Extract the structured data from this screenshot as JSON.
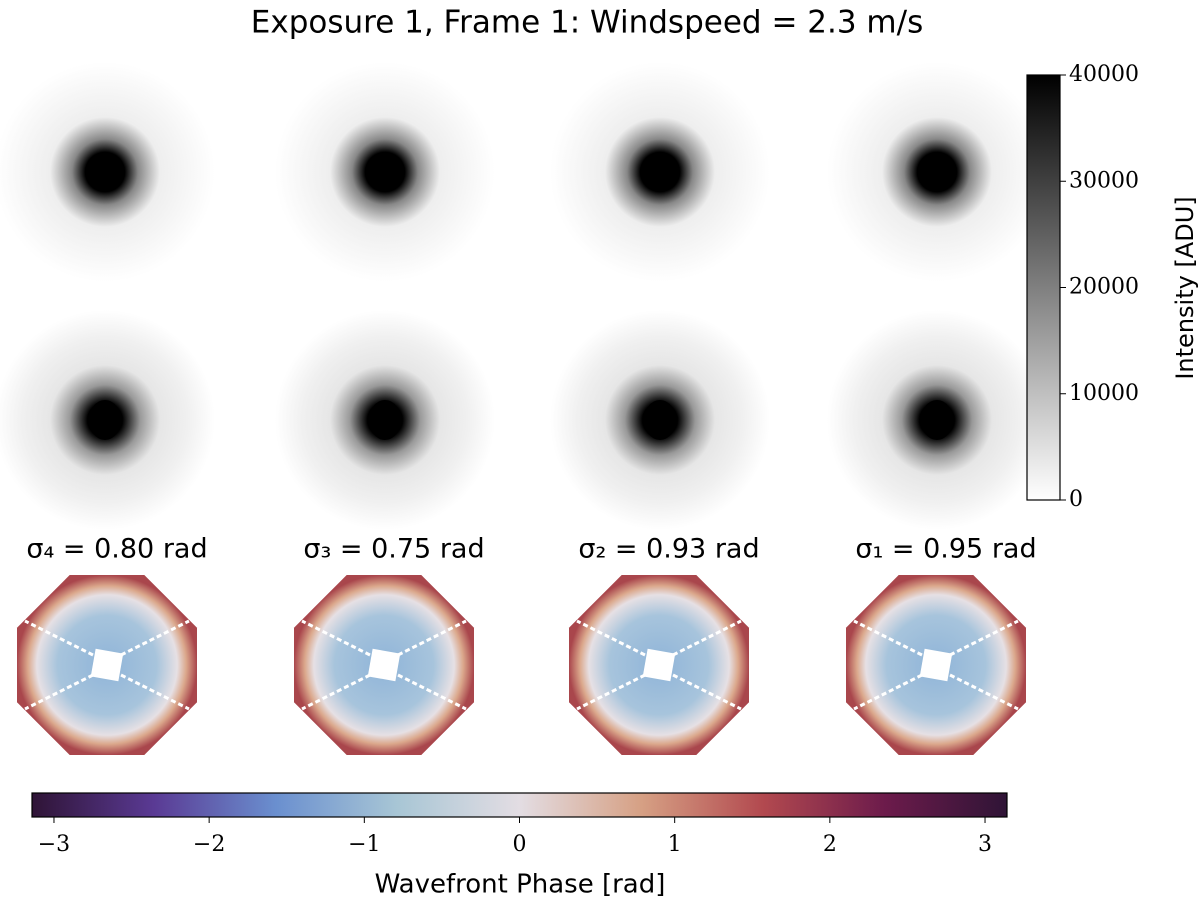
{
  "title": "Exposure 1, Frame 1: Windspeed = 2.3 m/s",
  "intensity_colorbar": {
    "label": "Intensity [ADU]",
    "lim": [
      0,
      40000
    ],
    "ticks": [
      0,
      10000,
      20000,
      30000,
      40000
    ],
    "colors": [
      "#ffffff",
      "#000000"
    ]
  },
  "wavefront_labels": [
    "σ₄ = 0.80 rad",
    "σ₃ = 0.75 rad",
    "σ₂ = 0.93 rad",
    "σ₁ = 0.95 rad"
  ],
  "phase_colorbar": {
    "label": "Wavefront Phase [rad]",
    "lim": [
      -3.1416,
      3.1416
    ],
    "ticks": [
      {
        "value": -3,
        "label": "−3"
      },
      {
        "value": -2,
        "label": "−2"
      },
      {
        "value": -1,
        "label": "−1"
      },
      0,
      1,
      2,
      3
    ],
    "colors": [
      "#2f1436",
      "#5a3a94",
      "#6a8fcf",
      "#a8c6d5",
      "#e3dde3",
      "#d6a084",
      "#b2494f",
      "#6c1b4b",
      "#2f1436"
    ]
  }
}
